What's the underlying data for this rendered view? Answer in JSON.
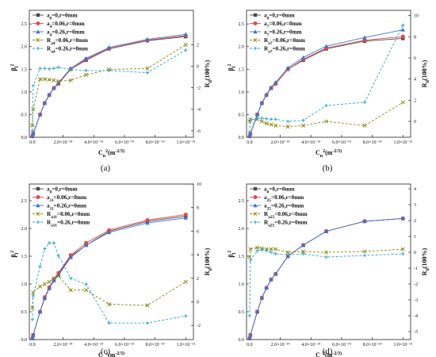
{
  "figure": {
    "panels": [
      {
        "caption": "(a)",
        "xlabel": "C_n^2(m^-2/3)",
        "ylabel_left": "β_l^2",
        "ylabel_right": "R_d(100%)",
        "legend": [
          "a_0=0,r=0mm",
          "a_4=0.06,r=0mm",
          "a_4=0.26,r=0mm",
          "R_a4=0.06,r=0mm",
          "R_a4=0.26,r=0mm"
        ],
        "y2ticks": [
          "2",
          "0",
          "-2",
          "-4",
          "-6"
        ]
      },
      {
        "caption": "(b)",
        "xlabel": "C_n^2(m^-2/3)",
        "ylabel_left": "β_l^2",
        "ylabel_right": "R_d(100%)",
        "legend": [
          "a_0=0,r=0mm",
          "a_7=0.06,r=0mm",
          "a_7=0.26,r=0mm",
          "R_a7=0.06,r=0mm",
          "R_a7=0.26,r=0mm"
        ],
        "y2ticks": [
          "10",
          "8",
          "6",
          "4",
          "2",
          "0"
        ]
      },
      {
        "caption": "(c)",
        "xlabel": "C_n^2(m^-2/3)",
        "ylabel_left": "β_l^2",
        "ylabel_right": "R_d(100%)",
        "legend": [
          "a_0=0,r=0mm",
          "a_11=0.06,r=0mm",
          "a_11=0.26,r=0mm",
          "R_a11=0.06,r=0mm",
          "R_a11=0.26,r=0mm"
        ],
        "y2ticks": [
          "10",
          "8",
          "6",
          "4",
          "2",
          "0",
          "-2"
        ]
      },
      {
        "caption": "(d)",
        "xlabel": "C_n^2(m^-2/3)",
        "ylabel_left": "β_l^2",
        "ylabel_right": "R_d(100%)",
        "legend": [
          "a_0=0,r=0mm",
          "a_25=0.06,r=0mm",
          "a_25=0.26,r=0mm",
          "R_a25=0.06,r=0mm",
          "R_a25=0.26,r=0mm"
        ],
        "y2ticks": [
          "4",
          "3",
          "2",
          "1",
          "0",
          "-1",
          "-2",
          "-3",
          "-4",
          "-5"
        ]
      }
    ],
    "xticks": [
      "0.0",
      "2.0×10⁻¹⁴",
      "4.0×10⁻¹⁴",
      "6.0×10⁻¹⁴",
      "8.0×10⁻¹⁴",
      "1.0×10⁻¹³"
    ],
    "yticks": [
      "0.0",
      "0.5",
      "1.0",
      "1.5",
      "2.0",
      "2.5"
    ],
    "colors": {
      "base": "#4a4a4a",
      "a006": "#e8474a",
      "a026": "#3a75d4",
      "R006": "#8b8a10",
      "R026": "#2aa6c9",
      "axis": "#222222"
    }
  },
  "chart_data": [
    {
      "type": "line",
      "title": "",
      "xlabel": "C_n^2(m^-2/3)",
      "ylabel": "β_l^2",
      "y2label": "R_d(100%)",
      "xlim": [
        -2e-15,
        1.05e-13
      ],
      "ylim": [
        0,
        2.8
      ],
      "y2lim": [
        -6.6,
        5.2
      ],
      "series": [
        {
          "name": "a_0=0,r=0mm",
          "axis": "left",
          "marker": "square",
          "x": [
            0,
            5e-16,
            5e-15,
            8e-15,
            1.1e-14,
            1.4e-14,
            1.7e-14,
            2.5e-14,
            3.5e-14,
            5e-14,
            7.5e-14,
            1e-13
          ],
          "y": [
            0.02,
            0.08,
            0.5,
            0.75,
            0.93,
            1.08,
            1.18,
            1.5,
            1.7,
            1.95,
            2.13,
            2.22
          ]
        },
        {
          "name": "a_4=0.06,r=0mm",
          "axis": "left",
          "marker": "circle",
          "x": [
            0,
            5e-16,
            5e-15,
            8e-15,
            1.1e-14,
            1.4e-14,
            1.7e-14,
            2.5e-14,
            3.5e-14,
            5e-14,
            7.5e-14,
            1e-13
          ],
          "y": [
            0.02,
            0.08,
            0.5,
            0.75,
            0.93,
            1.08,
            1.18,
            1.5,
            1.72,
            1.96,
            2.14,
            2.24
          ]
        },
        {
          "name": "a_4=0.26,r=0mm",
          "axis": "left",
          "marker": "triangle",
          "x": [
            0,
            5e-16,
            5e-15,
            8e-15,
            1.1e-14,
            1.4e-14,
            1.7e-14,
            2.5e-14,
            3.5e-14,
            5e-14,
            7.5e-14,
            1e-13
          ],
          "y": [
            0.02,
            0.08,
            0.5,
            0.76,
            0.94,
            1.09,
            1.2,
            1.52,
            1.74,
            1.98,
            2.16,
            2.27
          ]
        },
        {
          "name": "R_a4=0.06,r=0mm",
          "axis": "right",
          "marker": "x",
          "dashed": true,
          "x": [
            0,
            5e-16,
            5e-15,
            8e-15,
            1.1e-14,
            1.4e-14,
            1.7e-14,
            2.5e-14,
            3.5e-14,
            5e-14,
            7.5e-14,
            1e-13
          ],
          "y": [
            -5.5,
            -4.0,
            -1.2,
            -1.2,
            -1.25,
            -1.3,
            -1.4,
            -1.3,
            -0.8,
            -0.3,
            -0.2,
            2.0
          ]
        },
        {
          "name": "R_a4=0.26,r=0mm",
          "axis": "right",
          "marker": "plus",
          "dashed": true,
          "x": [
            0,
            5e-16,
            5e-15,
            8e-15,
            1.1e-14,
            1.4e-14,
            1.7e-14,
            2.5e-14,
            3.5e-14,
            5e-14,
            7.5e-14,
            1e-13
          ],
          "y": [
            -6.0,
            -1.8,
            -0.2,
            -0.2,
            -0.25,
            -0.2,
            -0.1,
            -0.3,
            -0.4,
            -0.4,
            -0.6,
            1.5
          ]
        }
      ]
    },
    {
      "type": "line",
      "title": "",
      "xlabel": "C_n^2(m^-2/3)",
      "ylabel": "β_l^2",
      "y2label": "R_d(100%)",
      "xlim": [
        -2e-15,
        1.05e-13
      ],
      "ylim": [
        0,
        2.8
      ],
      "y2lim": [
        -1.5,
        10.5
      ],
      "series": [
        {
          "name": "a_0=0,r=0mm",
          "axis": "left",
          "marker": "square",
          "x": [
            0,
            5e-16,
            5e-15,
            8e-15,
            1.1e-14,
            1.4e-14,
            1.7e-14,
            2.5e-14,
            3.5e-14,
            5e-14,
            7.5e-14,
            1e-13
          ],
          "y": [
            0.02,
            0.08,
            0.5,
            0.75,
            0.93,
            1.08,
            1.18,
            1.5,
            1.7,
            1.95,
            2.12,
            2.18
          ]
        },
        {
          "name": "a_7=0.06,r=0mm",
          "axis": "left",
          "marker": "circle",
          "x": [
            0,
            5e-16,
            5e-15,
            8e-15,
            1.1e-14,
            1.4e-14,
            1.7e-14,
            2.5e-14,
            3.5e-14,
            5e-14,
            7.5e-14,
            1e-13
          ],
          "y": [
            0.02,
            0.08,
            0.5,
            0.75,
            0.93,
            1.08,
            1.18,
            1.5,
            1.72,
            1.97,
            2.14,
            2.22
          ]
        },
        {
          "name": "a_7=0.26,r=0mm",
          "axis": "left",
          "marker": "triangle",
          "x": [
            0,
            5e-16,
            5e-15,
            8e-15,
            1.1e-14,
            1.4e-14,
            1.7e-14,
            2.5e-14,
            3.5e-14,
            5e-14,
            7.5e-14,
            1e-13
          ],
          "y": [
            0.02,
            0.08,
            0.5,
            0.76,
            0.94,
            1.1,
            1.21,
            1.53,
            1.76,
            2.01,
            2.2,
            2.37
          ]
        },
        {
          "name": "R_a7=0.06,r=0mm",
          "axis": "right",
          "marker": "x",
          "dashed": true,
          "x": [
            0,
            5e-16,
            5e-15,
            8e-15,
            1.1e-14,
            1.4e-14,
            1.7e-14,
            2.5e-14,
            3.5e-14,
            5e-14,
            7.5e-14,
            1e-13
          ],
          "y": [
            0.0,
            0.2,
            0.2,
            0.0,
            -0.2,
            -0.3,
            -0.4,
            -0.5,
            -0.4,
            0.0,
            -0.4,
            1.8
          ]
        },
        {
          "name": "R_a7=0.26,r=0mm",
          "axis": "right",
          "marker": "plus",
          "dashed": true,
          "x": [
            0,
            5e-16,
            5e-15,
            8e-15,
            1.1e-14,
            1.4e-14,
            1.7e-14,
            2.5e-14,
            3.5e-14,
            5e-14,
            7.5e-14,
            1e-13
          ],
          "y": [
            -1.0,
            0.1,
            0.3,
            0.3,
            0.25,
            0.2,
            0.2,
            0.0,
            0.1,
            1.5,
            1.8,
            9.1
          ]
        }
      ]
    },
    {
      "type": "line",
      "title": "",
      "xlabel": "C_n^2(m^-2/3)",
      "ylabel": "β_l^2",
      "y2label": "R_d(100%)",
      "xlim": [
        -2e-15,
        1.05e-13
      ],
      "ylim": [
        0,
        2.8
      ],
      "y2lim": [
        -3.2,
        10.0
      ],
      "series": [
        {
          "name": "a_0=0,r=0mm",
          "axis": "left",
          "marker": "square",
          "x": [
            0,
            5e-16,
            5e-15,
            8e-15,
            1.1e-14,
            1.4e-14,
            1.7e-14,
            2.5e-14,
            3.5e-14,
            5e-14,
            7.5e-14,
            1e-13
          ],
          "y": [
            0.02,
            0.08,
            0.5,
            0.75,
            0.93,
            1.08,
            1.18,
            1.5,
            1.7,
            1.95,
            2.13,
            2.22
          ]
        },
        {
          "name": "a_11=0.06,r=0mm",
          "axis": "left",
          "marker": "circle",
          "x": [
            0,
            5e-16,
            5e-15,
            8e-15,
            1.1e-14,
            1.4e-14,
            1.7e-14,
            2.5e-14,
            3.5e-14,
            5e-14,
            7.5e-14,
            1e-13
          ],
          "y": [
            0.02,
            0.08,
            0.5,
            0.76,
            0.94,
            1.09,
            1.2,
            1.52,
            1.74,
            1.97,
            2.15,
            2.25
          ]
        },
        {
          "name": "a_11=0.26,r=0mm",
          "axis": "left",
          "marker": "triangle",
          "x": [
            0,
            5e-16,
            5e-15,
            8e-15,
            1.1e-14,
            1.4e-14,
            1.7e-14,
            2.5e-14,
            3.5e-14,
            5e-14,
            7.5e-14,
            1e-13
          ],
          "y": [
            0.02,
            0.08,
            0.5,
            0.74,
            0.92,
            1.06,
            1.16,
            1.48,
            1.7,
            1.93,
            2.1,
            2.19
          ]
        },
        {
          "name": "R_a11=0.06,r=0mm",
          "axis": "right",
          "marker": "x",
          "dashed": true,
          "x": [
            0,
            5e-16,
            5e-15,
            8e-15,
            1.1e-14,
            1.4e-14,
            1.7e-14,
            2.5e-14,
            3.5e-14,
            5e-14,
            7.5e-14,
            1e-13
          ],
          "y": [
            -0.5,
            0.8,
            1.3,
            1.5,
            1.7,
            2.0,
            2.2,
            1.0,
            1.0,
            -0.2,
            -0.3,
            1.7
          ]
        },
        {
          "name": "R_a11=0.26,r=0mm",
          "axis": "right",
          "marker": "plus",
          "dashed": true,
          "x": [
            0,
            5e-16,
            5e-15,
            8e-15,
            1.1e-14,
            1.4e-14,
            1.7e-14,
            2.5e-14,
            3.5e-14,
            5e-14,
            7.5e-14,
            1e-13
          ],
          "y": [
            -1.5,
            0.5,
            3.0,
            4.5,
            5.0,
            5.0,
            3.9,
            2.0,
            1.5,
            -1.8,
            -1.8,
            -1.2
          ]
        }
      ]
    },
    {
      "type": "line",
      "title": "",
      "xlabel": "C_n^2(m^-2/3)",
      "ylabel": "β_l^2",
      "y2label": "R_d(100%)",
      "xlim": [
        -2e-15,
        1.05e-13
      ],
      "ylim": [
        0,
        2.8
      ],
      "y2lim": [
        -5.5,
        4.3
      ],
      "series": [
        {
          "name": "a_0=0,r=0mm",
          "axis": "left",
          "marker": "square",
          "x": [
            0,
            5e-16,
            5e-15,
            8e-15,
            1.1e-14,
            1.4e-14,
            1.7e-14,
            2.5e-14,
            3.5e-14,
            5e-14,
            7.5e-14,
            1e-13
          ],
          "y": [
            0.02,
            0.08,
            0.5,
            0.75,
            0.93,
            1.08,
            1.18,
            1.5,
            1.7,
            1.95,
            2.13,
            2.18
          ]
        },
        {
          "name": "a_25=0.06,r=0mm",
          "axis": "left",
          "marker": "circle",
          "x": [
            0,
            5e-16,
            5e-15,
            8e-15,
            1.1e-14,
            1.4e-14,
            1.7e-14,
            2.5e-14,
            3.5e-14,
            5e-14,
            7.5e-14,
            1e-13
          ],
          "y": [
            0.02,
            0.08,
            0.5,
            0.75,
            0.93,
            1.08,
            1.18,
            1.5,
            1.7,
            1.95,
            2.13,
            2.18
          ]
        },
        {
          "name": "a_25=0.26,r=0mm",
          "axis": "left",
          "marker": "triangle",
          "x": [
            0,
            5e-16,
            5e-15,
            8e-15,
            1.1e-14,
            1.4e-14,
            1.7e-14,
            2.5e-14,
            3.5e-14,
            5e-14,
            7.5e-14,
            1e-13
          ],
          "y": [
            0.02,
            0.08,
            0.5,
            0.75,
            0.93,
            1.08,
            1.18,
            1.5,
            1.7,
            1.95,
            2.13,
            2.18
          ]
        },
        {
          "name": "R_a25=0.06,r=0mm",
          "axis": "right",
          "marker": "x",
          "dashed": true,
          "x": [
            0,
            5e-16,
            5e-15,
            8e-15,
            1.1e-14,
            1.4e-14,
            1.7e-14,
            2.5e-14,
            3.5e-14,
            5e-14,
            7.5e-14,
            1e-13
          ],
          "y": [
            -0.3,
            0.2,
            0.3,
            0.25,
            0.2,
            0.2,
            0.2,
            0.0,
            0.05,
            0.0,
            0.05,
            0.2
          ]
        },
        {
          "name": "R_a25=0.26,r=0mm",
          "axis": "right",
          "marker": "plus",
          "dashed": true,
          "x": [
            0,
            5e-16,
            5e-15,
            8e-15,
            1.1e-14,
            1.4e-14,
            1.7e-14,
            2.5e-14,
            3.5e-14,
            5e-14,
            7.5e-14,
            1e-13
          ],
          "y": [
            -4.0,
            -0.5,
            0.1,
            0.15,
            0.1,
            0.0,
            -0.1,
            -0.15,
            -0.1,
            -0.3,
            -0.2,
            -0.1
          ]
        }
      ]
    }
  ]
}
